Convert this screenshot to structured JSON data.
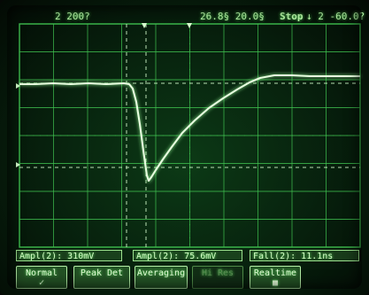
{
  "status_bar": {
    "channel_scale": "2  200?",
    "timebase": "26.8§  20.0§",
    "run_state": "Stop",
    "trigger": "↓ 2  -60.0?"
  },
  "measurements": [
    {
      "label": "Ampl(2): 310mV"
    },
    {
      "label": "Ampl(2): 75.6mV"
    },
    {
      "label": "Fall(2): 11.1ns"
    }
  ],
  "softkeys": [
    {
      "label": "Normal",
      "sub": "✓"
    },
    {
      "label": "Peak Det",
      "sub": ""
    },
    {
      "label": "Averaging",
      "sub": ""
    },
    {
      "label": "Hi Res",
      "sub": ""
    },
    {
      "label": "Realtime",
      "sub": "■"
    }
  ],
  "colors": {
    "trace": "#e8ffe0",
    "grid": "#3fbf4f",
    "marker": "#d8ffd0",
    "text": "#b8f7a8"
  },
  "icons": {
    "trigger_marker": "trigger-arrow-icon",
    "ground_marker": "ground-level-icon",
    "check": "check-icon"
  }
}
